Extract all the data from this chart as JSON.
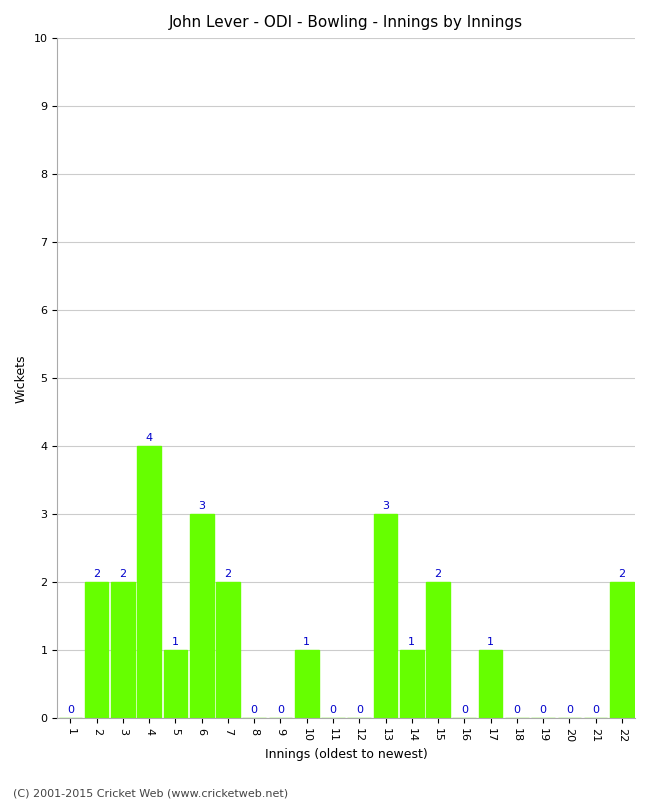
{
  "title": "John Lever - ODI - Bowling - Innings by Innings",
  "xlabel": "Innings (oldest to newest)",
  "ylabel": "Wickets",
  "categories": [
    1,
    2,
    3,
    4,
    5,
    6,
    7,
    8,
    9,
    10,
    11,
    12,
    13,
    14,
    15,
    16,
    17,
    18,
    19,
    20,
    21,
    22
  ],
  "values": [
    0,
    2,
    2,
    4,
    1,
    3,
    2,
    0,
    0,
    1,
    0,
    0,
    3,
    1,
    2,
    0,
    1,
    0,
    0,
    0,
    0,
    2
  ],
  "bar_color": "#66ff00",
  "label_color": "#0000cc",
  "background_color": "#ffffff",
  "grid_color": "#cccccc",
  "ylim": [
    0,
    10
  ],
  "yticks": [
    0,
    1,
    2,
    3,
    4,
    5,
    6,
    7,
    8,
    9,
    10
  ],
  "footer": "(C) 2001-2015 Cricket Web (www.cricketweb.net)",
  "title_fontsize": 11,
  "axis_label_fontsize": 9,
  "tick_fontsize": 8,
  "annotation_fontsize": 8,
  "footer_fontsize": 8
}
